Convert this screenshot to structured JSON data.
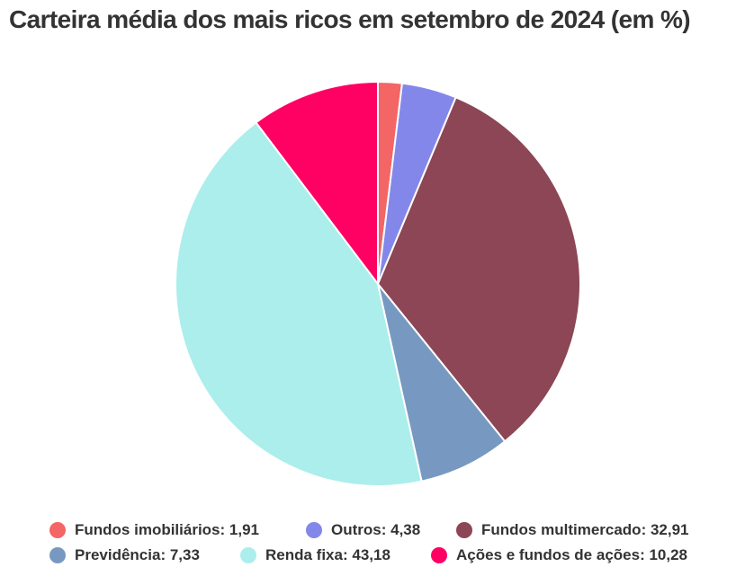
{
  "chart_data": {
    "type": "pie",
    "title": "Carteira média dos mais ricos em setembro de 2024 (em %)",
    "start_angle_deg": 0,
    "direction": "clockwise",
    "legend_position": "bottom",
    "slices": [
      {
        "label": "Fundos imobiliários",
        "value": 1.91,
        "value_text": "1,91",
        "color": "#f46565"
      },
      {
        "label": "Outros",
        "value": 4.38,
        "value_text": "4,38",
        "color": "#8487ea"
      },
      {
        "label": "Fundos multimercado",
        "value": 32.91,
        "value_text": "32,91",
        "color": "#8c4655"
      },
      {
        "label": "Previdência",
        "value": 7.33,
        "value_text": "7,33",
        "color": "#7799c1"
      },
      {
        "label": "Renda fixa",
        "value": 43.18,
        "value_text": "43,18",
        "color": "#abeeec"
      },
      {
        "label": "Ações e fundos de ações",
        "value": 10.28,
        "value_text": "10,28",
        "color": "#ff0063"
      }
    ]
  }
}
